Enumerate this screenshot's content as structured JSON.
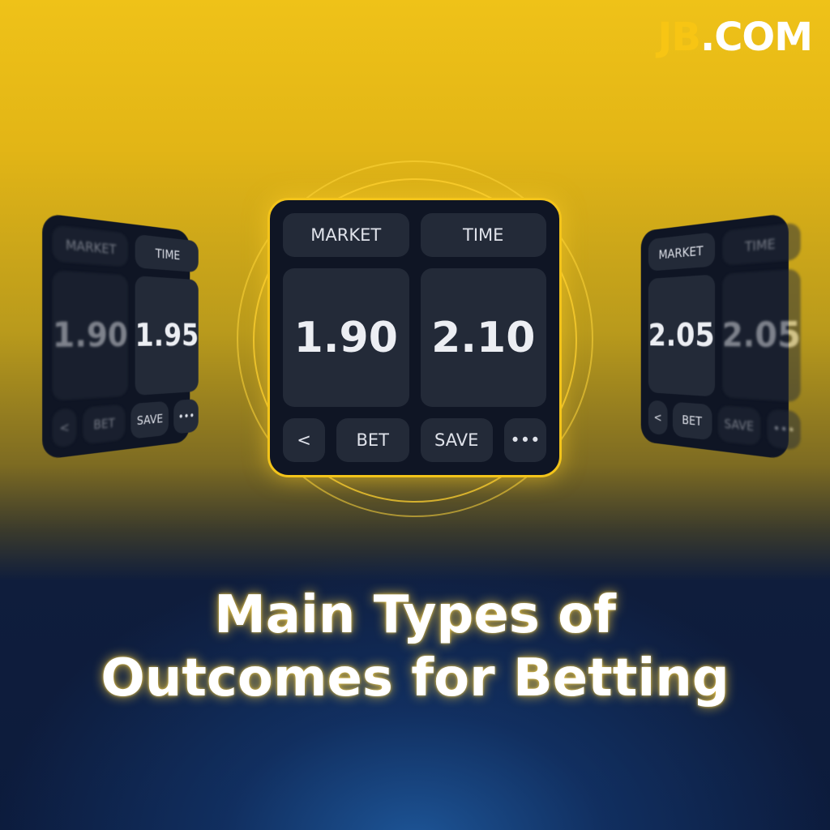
{
  "logo": {
    "jb": "JB",
    "com": ".COM"
  },
  "cards": {
    "left": {
      "market": "MARKET",
      "time": "TIME",
      "odds": [
        "1.90",
        "1.95"
      ],
      "back": "<",
      "bet": "BET",
      "save": "SAVE",
      "more": "•••"
    },
    "center": {
      "market": "MARKET",
      "time": "TIME",
      "odds": [
        "1.90",
        "2.10"
      ],
      "back": "<",
      "bet": "BET",
      "save": "SAVE",
      "more": "•••"
    },
    "right": {
      "market": "MARKET",
      "time": "TIME",
      "odds": [
        "2.05",
        "2.05"
      ],
      "back": "<",
      "bet": "BET",
      "save": "SAVE",
      "more": "•••"
    }
  },
  "headline": {
    "line1": "Main Types of",
    "line2": "Outcomes for Betting"
  },
  "colors": {
    "accent": "#f3c41a",
    "card": "#0f1524",
    "tile": "#232a38"
  }
}
